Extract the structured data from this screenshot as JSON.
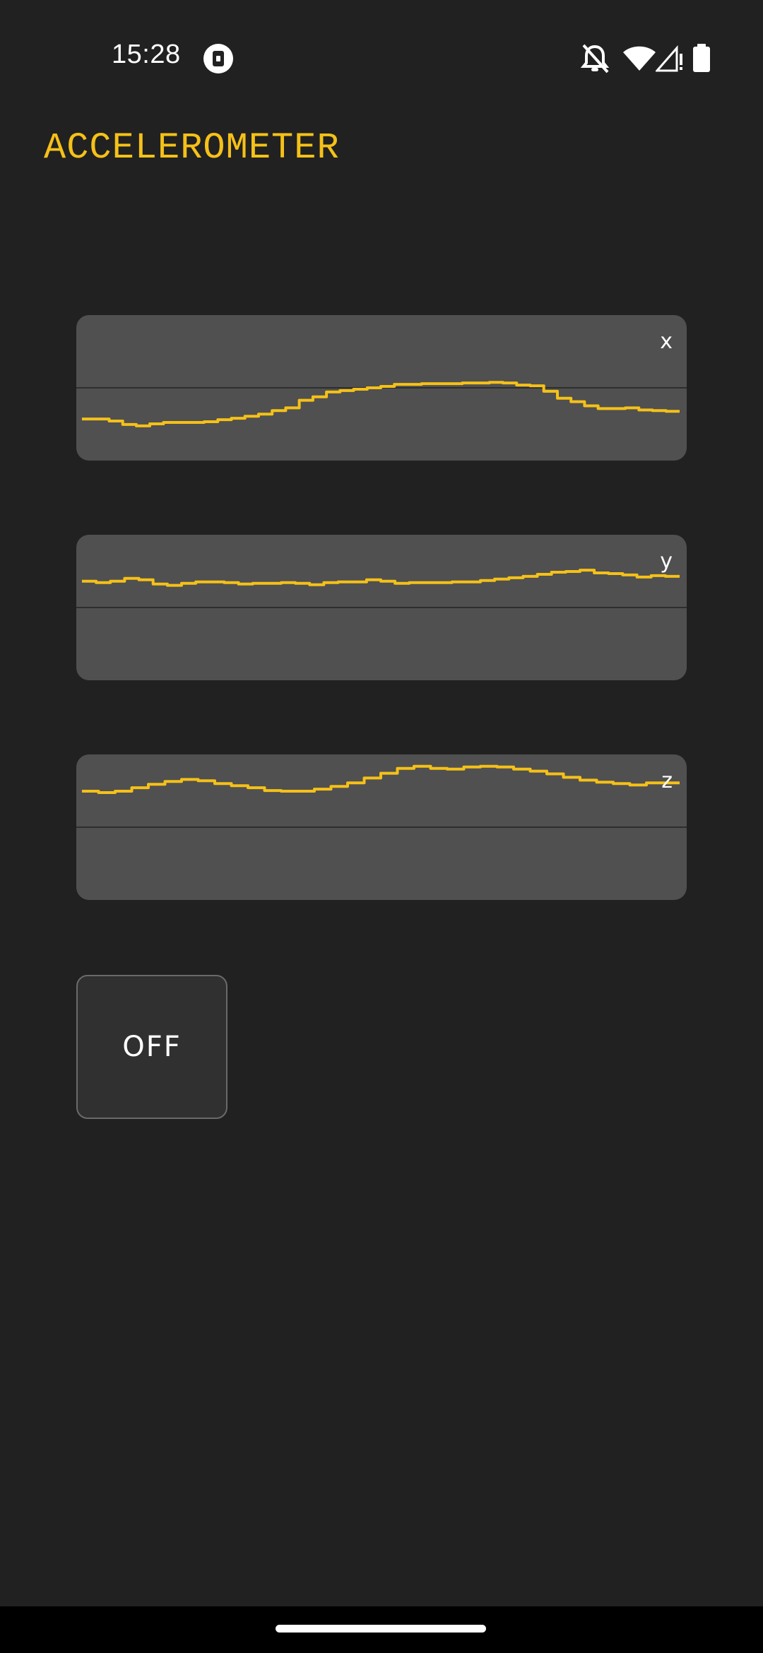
{
  "status_bar": {
    "time": "15:28",
    "icons": [
      "app-indicator-icon",
      "notifications-off-icon",
      "wifi-icon",
      "cellular-no-signal-icon",
      "battery-icon"
    ]
  },
  "app": {
    "title": "ACCELEROMETER"
  },
  "graphs": [
    {
      "axis": "x",
      "values": [
        0.45,
        0.45,
        0.48,
        0.53,
        0.55,
        0.52,
        0.5,
        0.5,
        0.5,
        0.49,
        0.46,
        0.44,
        0.41,
        0.38,
        0.33,
        0.29,
        0.18,
        0.13,
        0.06,
        0.04,
        0.02,
        0.0,
        -0.02,
        -0.05,
        -0.05,
        -0.06,
        -0.06,
        -0.06,
        -0.07,
        -0.07,
        -0.08,
        -0.07,
        -0.04,
        -0.03,
        0.05,
        0.15,
        0.2,
        0.26,
        0.3,
        0.3,
        0.29,
        0.32,
        0.33,
        0.34
      ]
    },
    {
      "axis": "y",
      "values": [
        -0.38,
        -0.36,
        -0.38,
        -0.42,
        -0.4,
        -0.34,
        -0.32,
        -0.35,
        -0.37,
        -0.37,
        -0.36,
        -0.34,
        -0.35,
        -0.35,
        -0.36,
        -0.35,
        -0.33,
        -0.36,
        -0.37,
        -0.37,
        -0.4,
        -0.38,
        -0.35,
        -0.36,
        -0.36,
        -0.36,
        -0.37,
        -0.37,
        -0.39,
        -0.41,
        -0.43,
        -0.45,
        -0.48,
        -0.51,
        -0.52,
        -0.54,
        -0.5,
        -0.49,
        -0.47,
        -0.44,
        -0.46,
        -0.45
      ]
    },
    {
      "axis": "z",
      "values": [
        -0.52,
        -0.5,
        -0.52,
        -0.57,
        -0.62,
        -0.66,
        -0.69,
        -0.67,
        -0.63,
        -0.6,
        -0.57,
        -0.53,
        -0.52,
        -0.52,
        -0.55,
        -0.59,
        -0.64,
        -0.71,
        -0.78,
        -0.85,
        -0.88,
        -0.85,
        -0.84,
        -0.87,
        -0.88,
        -0.87,
        -0.84,
        -0.81,
        -0.77,
        -0.72,
        -0.68,
        -0.65,
        -0.63,
        -0.61,
        -0.64,
        -0.64
      ]
    }
  ],
  "controls": {
    "toggle_label": "OFF"
  },
  "colors": {
    "background": "#212121",
    "card": "#505050",
    "trace": "#f5c118",
    "baseline": "#2e2e2e",
    "title": "#f5c118"
  }
}
